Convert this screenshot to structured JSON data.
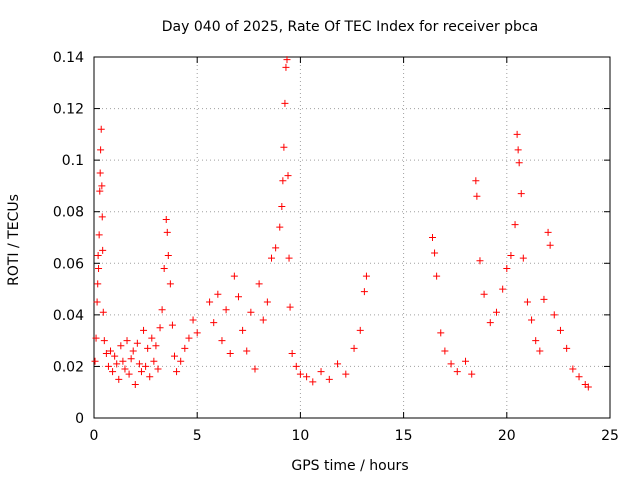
{
  "chart_data": {
    "type": "scatter",
    "title": "Day 040 of 2025, Rate Of TEC Index for receiver pbca",
    "xlabel": "GPS time / hours",
    "ylabel": "ROTI / TECUs",
    "xlim": [
      0,
      25
    ],
    "ylim": [
      0,
      0.14
    ],
    "x_ticks": [
      0,
      5,
      10,
      15,
      20,
      25
    ],
    "y_ticks": [
      0,
      0.02,
      0.04,
      0.06,
      0.08,
      0.1,
      0.12,
      0.14
    ],
    "x_tick_labels": [
      "0",
      "5",
      "10",
      "15",
      "20",
      "25"
    ],
    "y_tick_labels": [
      "0",
      "0.02",
      "0.04",
      "0.06",
      "0.08",
      "0.1",
      "0.12",
      "0.14"
    ],
    "grid": true,
    "marker": "+",
    "color": "#ff0000",
    "series": [
      {
        "points": [
          [
            0.05,
            0.022
          ],
          [
            0.1,
            0.031
          ],
          [
            0.15,
            0.045
          ],
          [
            0.18,
            0.052
          ],
          [
            0.2,
            0.063
          ],
          [
            0.22,
            0.058
          ],
          [
            0.25,
            0.071
          ],
          [
            0.28,
            0.088
          ],
          [
            0.3,
            0.095
          ],
          [
            0.32,
            0.104
          ],
          [
            0.35,
            0.112
          ],
          [
            0.38,
            0.09
          ],
          [
            0.4,
            0.078
          ],
          [
            0.42,
            0.065
          ],
          [
            0.45,
            0.041
          ],
          [
            0.5,
            0.03
          ],
          [
            0.6,
            0.025
          ],
          [
            0.7,
            0.02
          ],
          [
            0.8,
            0.026
          ],
          [
            0.9,
            0.018
          ],
          [
            1.0,
            0.024
          ],
          [
            1.1,
            0.021
          ],
          [
            1.2,
            0.015
          ],
          [
            1.3,
            0.028
          ],
          [
            1.4,
            0.022
          ],
          [
            1.5,
            0.019
          ],
          [
            1.6,
            0.03
          ],
          [
            1.7,
            0.017
          ],
          [
            1.8,
            0.023
          ],
          [
            1.9,
            0.026
          ],
          [
            2.0,
            0.013
          ],
          [
            2.1,
            0.029
          ],
          [
            2.2,
            0.021
          ],
          [
            2.3,
            0.018
          ],
          [
            2.4,
            0.034
          ],
          [
            2.5,
            0.02
          ],
          [
            2.6,
            0.027
          ],
          [
            2.7,
            0.016
          ],
          [
            2.8,
            0.031
          ],
          [
            2.9,
            0.022
          ],
          [
            3.0,
            0.028
          ],
          [
            3.1,
            0.019
          ],
          [
            3.2,
            0.035
          ],
          [
            3.3,
            0.042
          ],
          [
            3.4,
            0.058
          ],
          [
            3.5,
            0.077
          ],
          [
            3.55,
            0.072
          ],
          [
            3.6,
            0.063
          ],
          [
            3.7,
            0.052
          ],
          [
            3.8,
            0.036
          ],
          [
            3.9,
            0.024
          ],
          [
            4.0,
            0.018
          ],
          [
            4.2,
            0.022
          ],
          [
            4.4,
            0.027
          ],
          [
            4.6,
            0.031
          ],
          [
            4.8,
            0.038
          ],
          [
            5.0,
            0.033
          ],
          [
            5.6,
            0.045
          ],
          [
            5.8,
            0.037
          ],
          [
            6.0,
            0.048
          ],
          [
            6.2,
            0.03
          ],
          [
            6.4,
            0.042
          ],
          [
            6.6,
            0.025
          ],
          [
            6.8,
            0.055
          ],
          [
            7.0,
            0.047
          ],
          [
            7.2,
            0.034
          ],
          [
            7.4,
            0.026
          ],
          [
            7.6,
            0.041
          ],
          [
            7.8,
            0.019
          ],
          [
            8.0,
            0.052
          ],
          [
            8.2,
            0.038
          ],
          [
            8.4,
            0.045
          ],
          [
            8.6,
            0.062
          ],
          [
            8.8,
            0.066
          ],
          [
            9.0,
            0.074
          ],
          [
            9.1,
            0.082
          ],
          [
            9.15,
            0.092
          ],
          [
            9.2,
            0.105
          ],
          [
            9.25,
            0.122
          ],
          [
            9.3,
            0.136
          ],
          [
            9.35,
            0.139
          ],
          [
            9.4,
            0.094
          ],
          [
            9.45,
            0.062
          ],
          [
            9.5,
            0.043
          ],
          [
            9.6,
            0.025
          ],
          [
            9.8,
            0.02
          ],
          [
            10.0,
            0.017
          ],
          [
            10.3,
            0.016
          ],
          [
            10.6,
            0.014
          ],
          [
            11.0,
            0.018
          ],
          [
            11.4,
            0.015
          ],
          [
            11.8,
            0.021
          ],
          [
            12.2,
            0.017
          ],
          [
            12.6,
            0.027
          ],
          [
            12.9,
            0.034
          ],
          [
            13.1,
            0.049
          ],
          [
            13.2,
            0.055
          ],
          [
            16.4,
            0.07
          ],
          [
            16.5,
            0.064
          ],
          [
            16.6,
            0.055
          ],
          [
            16.8,
            0.033
          ],
          [
            17.0,
            0.026
          ],
          [
            17.3,
            0.021
          ],
          [
            17.6,
            0.018
          ],
          [
            18.0,
            0.022
          ],
          [
            18.3,
            0.017
          ],
          [
            18.5,
            0.092
          ],
          [
            18.55,
            0.086
          ],
          [
            18.7,
            0.061
          ],
          [
            18.9,
            0.048
          ],
          [
            19.2,
            0.037
          ],
          [
            19.5,
            0.041
          ],
          [
            19.8,
            0.05
          ],
          [
            20.0,
            0.058
          ],
          [
            20.2,
            0.063
          ],
          [
            20.4,
            0.075
          ],
          [
            20.5,
            0.11
          ],
          [
            20.55,
            0.104
          ],
          [
            20.6,
            0.099
          ],
          [
            20.7,
            0.087
          ],
          [
            20.8,
            0.062
          ],
          [
            21.0,
            0.045
          ],
          [
            21.2,
            0.038
          ],
          [
            21.4,
            0.03
          ],
          [
            21.6,
            0.026
          ],
          [
            21.8,
            0.046
          ],
          [
            22.0,
            0.072
          ],
          [
            22.1,
            0.067
          ],
          [
            22.3,
            0.04
          ],
          [
            22.6,
            0.034
          ],
          [
            22.9,
            0.027
          ],
          [
            23.2,
            0.019
          ],
          [
            23.5,
            0.016
          ],
          [
            23.8,
            0.013
          ],
          [
            23.95,
            0.012
          ]
        ]
      }
    ]
  }
}
